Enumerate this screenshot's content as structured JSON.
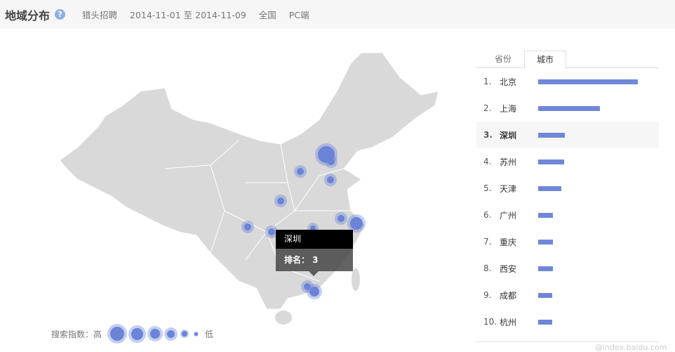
{
  "header": {
    "title": "地域分布",
    "help_icon": "question-icon",
    "keyword": "猎头招聘",
    "date_range": "2014-11-01 至 2014-11-09",
    "region": "全国",
    "device": "PC端"
  },
  "tabs": [
    {
      "label": "省份",
      "active": false
    },
    {
      "label": "城市",
      "active": true
    }
  ],
  "ranking": [
    {
      "rank": "1.",
      "city": "北京",
      "percent": 100
    },
    {
      "rank": "2.",
      "city": "上海",
      "percent": 62
    },
    {
      "rank": "3.",
      "city": "深圳",
      "percent": 27,
      "highlighted": true
    },
    {
      "rank": "4.",
      "city": "苏州",
      "percent": 26
    },
    {
      "rank": "5.",
      "city": "天津",
      "percent": 23
    },
    {
      "rank": "6.",
      "city": "广州",
      "percent": 15
    },
    {
      "rank": "7.",
      "city": "重庆",
      "percent": 15
    },
    {
      "rank": "8.",
      "city": "西安",
      "percent": 15
    },
    {
      "rank": "9.",
      "city": "成都",
      "percent": 14
    },
    {
      "rank": "10.",
      "city": "杭州",
      "percent": 14
    }
  ],
  "tooltip": {
    "city": "深圳",
    "rank_text": "排名： 3"
  },
  "legend": {
    "label": "搜索指数：高",
    "low": "低"
  },
  "watermark": "@index.baidu.com",
  "colors": {
    "bubble": "#6b84d8",
    "bar": "#6f87d8",
    "map": "#d9d9d9"
  }
}
